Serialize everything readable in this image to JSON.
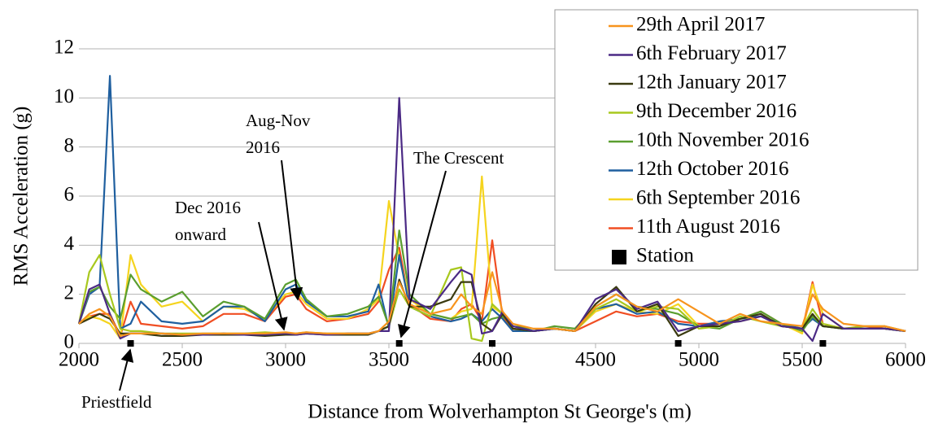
{
  "chart_data": {
    "type": "line",
    "x_label": "Distance from Wolverhampton St George's (m)",
    "y_label": "RMS Acceleration (g)",
    "xlim": [
      2000,
      6000
    ],
    "xticks": [
      2000,
      2500,
      3000,
      3500,
      4000,
      4500,
      5000,
      5500,
      6000
    ],
    "ylim": [
      0,
      12
    ],
    "yticks": [
      0,
      2,
      4,
      6,
      8,
      10,
      12
    ],
    "grid": true,
    "legend": "top-right",
    "x": [
      2000,
      2050,
      2100,
      2150,
      2200,
      2250,
      2300,
      2400,
      2500,
      2600,
      2700,
      2800,
      2900,
      3000,
      3050,
      3100,
      3200,
      3300,
      3400,
      3450,
      3500,
      3550,
      3600,
      3700,
      3800,
      3850,
      3900,
      3950,
      4000,
      4050,
      4100,
      4200,
      4300,
      4400,
      4500,
      4600,
      4700,
      4800,
      4900,
      5000,
      5100,
      5200,
      5300,
      5400,
      5500,
      5550,
      5600,
      5700,
      5800,
      5900,
      6000
    ],
    "series": [
      {
        "name": "29th April 2017",
        "color": "#f7941d",
        "values": [
          0.8,
          1.2,
          1.4,
          1.1,
          0.3,
          0.4,
          0.4,
          0.4,
          0.35,
          0.4,
          0.4,
          0.4,
          0.4,
          0.45,
          0.4,
          0.45,
          0.4,
          0.4,
          0.4,
          0.5,
          0.9,
          2.5,
          1.6,
          1.2,
          1.4,
          2.0,
          1.5,
          1.2,
          2.9,
          1.3,
          0.8,
          0.6,
          0.6,
          0.5,
          1.5,
          2.0,
          1.5,
          1.3,
          1.8,
          1.3,
          0.8,
          1.2,
          0.9,
          0.8,
          0.7,
          2.0,
          1.4,
          0.8,
          0.7,
          0.7,
          0.5
        ]
      },
      {
        "name": "6th February 2017",
        "color": "#4b2a85",
        "values": [
          0.8,
          2.2,
          2.4,
          1.2,
          0.2,
          0.4,
          0.4,
          0.4,
          0.35,
          0.35,
          0.4,
          0.35,
          0.35,
          0.4,
          0.35,
          0.4,
          0.35,
          0.4,
          0.4,
          0.5,
          0.5,
          10.0,
          1.8,
          1.4,
          2.5,
          3.0,
          2.8,
          0.4,
          0.5,
          1.3,
          0.7,
          0.5,
          0.6,
          0.5,
          1.8,
          2.2,
          1.4,
          1.7,
          0.5,
          0.7,
          0.8,
          0.9,
          1.1,
          0.7,
          0.6,
          0.1,
          1.2,
          0.6,
          0.6,
          0.6,
          0.5
        ]
      },
      {
        "name": "12th January 2017",
        "color": "#3a3a10",
        "values": [
          0.8,
          1.0,
          1.2,
          1.0,
          0.4,
          0.4,
          0.4,
          0.3,
          0.3,
          0.35,
          0.35,
          0.35,
          0.3,
          0.35,
          0.35,
          0.4,
          0.35,
          0.35,
          0.35,
          0.5,
          0.7,
          2.6,
          1.5,
          1.5,
          1.8,
          2.5,
          2.5,
          0.8,
          0.5,
          1.2,
          0.6,
          0.5,
          0.6,
          0.5,
          1.6,
          2.3,
          1.3,
          1.6,
          0.3,
          0.7,
          0.7,
          1.0,
          1.2,
          0.7,
          0.6,
          1.2,
          0.7,
          0.6,
          0.6,
          0.6,
          0.5
        ]
      },
      {
        "name": "9th December 2016",
        "color": "#a8c81e",
        "values": [
          0.8,
          2.9,
          3.6,
          2.0,
          0.6,
          0.5,
          0.5,
          0.4,
          0.4,
          0.4,
          0.4,
          0.4,
          0.45,
          0.4,
          0.4,
          0.45,
          0.4,
          0.4,
          0.4,
          0.5,
          0.7,
          2.2,
          1.5,
          1.1,
          3.0,
          3.1,
          0.2,
          0.1,
          1.6,
          1.2,
          0.6,
          0.5,
          0.6,
          0.5,
          1.4,
          1.8,
          1.3,
          1.5,
          1.4,
          0.6,
          0.7,
          1.1,
          0.9,
          0.7,
          0.6,
          1.4,
          0.8,
          0.6,
          0.7,
          0.7,
          0.5
        ]
      },
      {
        "name": "10th November 2016",
        "color": "#5a9e2f",
        "values": [
          0.8,
          2.1,
          2.3,
          1.5,
          1.0,
          2.8,
          2.2,
          1.7,
          2.1,
          1.1,
          1.7,
          1.5,
          1.0,
          2.4,
          2.6,
          1.8,
          1.1,
          1.2,
          1.5,
          1.9,
          0.7,
          4.6,
          2.0,
          1.2,
          1.0,
          1.1,
          1.2,
          0.8,
          1.0,
          1.1,
          0.8,
          0.5,
          0.7,
          0.6,
          1.5,
          2.0,
          1.5,
          1.4,
          1.2,
          0.7,
          0.6,
          1.0,
          1.3,
          0.8,
          0.5,
          1.1,
          0.7,
          0.6,
          0.6,
          0.6,
          0.5
        ]
      },
      {
        "name": "12th October 2016",
        "color": "#1f5f9f",
        "values": [
          0.8,
          2.0,
          2.3,
          10.9,
          0.6,
          0.8,
          1.7,
          0.9,
          0.8,
          0.9,
          1.5,
          1.5,
          0.9,
          2.2,
          2.4,
          1.7,
          1.1,
          1.1,
          1.3,
          2.4,
          0.6,
          3.6,
          1.5,
          1.1,
          0.9,
          1.0,
          1.2,
          0.9,
          1.4,
          1.0,
          0.5,
          0.5,
          0.6,
          0.5,
          1.4,
          1.6,
          1.2,
          1.3,
          0.8,
          0.7,
          0.9,
          1.0,
          1.1,
          0.8,
          0.6,
          1.0,
          0.7,
          0.6,
          0.6,
          0.6,
          0.5
        ]
      },
      {
        "name": "6th September 2016",
        "color": "#f5d41e",
        "values": [
          0.8,
          1.1,
          1.0,
          0.8,
          0.2,
          3.6,
          2.4,
          1.5,
          1.7,
          0.9,
          1.5,
          1.4,
          1.0,
          2.0,
          2.1,
          1.6,
          1.0,
          1.0,
          1.4,
          1.8,
          5.8,
          3.5,
          1.8,
          1.2,
          1.0,
          1.3,
          1.4,
          6.8,
          1.5,
          1.2,
          0.6,
          0.5,
          0.6,
          0.5,
          1.3,
          1.6,
          1.3,
          1.2,
          1.6,
          0.7,
          0.8,
          0.9,
          1.1,
          0.8,
          0.4,
          2.4,
          1.2,
          0.6,
          0.6,
          0.6,
          0.5
        ]
      },
      {
        "name": "11th August 2016",
        "color": "#f04e23",
        "values": [
          0.8,
          1.1,
          1.2,
          1.2,
          0.3,
          1.7,
          0.8,
          0.7,
          0.6,
          0.7,
          1.2,
          1.2,
          0.9,
          1.9,
          2.0,
          1.4,
          0.9,
          1.0,
          1.2,
          1.7,
          3.0,
          3.9,
          1.6,
          1.0,
          0.9,
          1.4,
          1.6,
          0.9,
          4.2,
          1.1,
          0.5,
          0.5,
          0.6,
          0.5,
          0.9,
          1.3,
          1.1,
          1.2,
          0.9,
          0.8,
          0.8,
          1.0,
          1.3,
          0.8,
          0.5,
          2.5,
          0.8,
          0.6,
          0.6,
          0.7,
          0.5
        ]
      },
      {
        "name": "Station",
        "color": "#000000",
        "marker": "square",
        "x": [
          2250,
          3550,
          4000,
          4900,
          5600
        ],
        "values": [
          0,
          0,
          0,
          0,
          0
        ]
      }
    ],
    "annotations": [
      {
        "lines": [
          "Aug-Nov",
          "2016"
        ]
      },
      {
        "lines": [
          "Dec 2016",
          "onward"
        ]
      },
      {
        "lines": [
          "The Crescent"
        ]
      },
      {
        "lines": [
          "Priestfield"
        ]
      }
    ]
  }
}
